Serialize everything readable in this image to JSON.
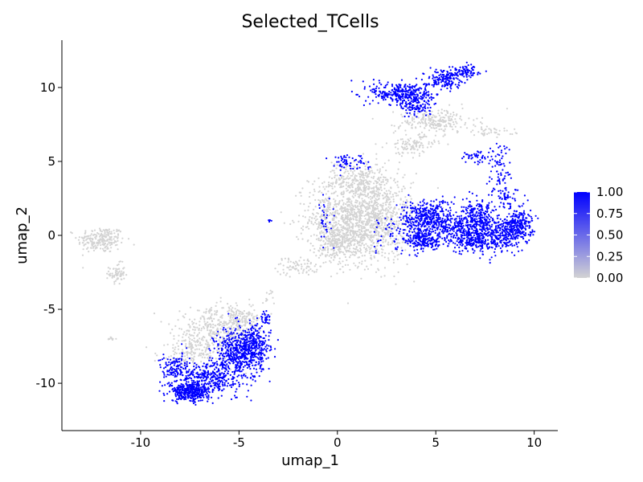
{
  "chart_data": {
    "type": "scatter",
    "title": "Selected_TCells",
    "xlabel": "umap_1",
    "ylabel": "umap_2",
    "xlim": [
      -14,
      11.2
    ],
    "ylim": [
      -13.2,
      13.2
    ],
    "x_ticks": [
      -10,
      -5,
      0,
      5,
      10
    ],
    "x_tick_labels": [
      "-10",
      "-5",
      "0",
      "5",
      "10"
    ],
    "y_ticks": [
      -10,
      -5,
      0,
      5,
      10
    ],
    "y_tick_labels": [
      "-10",
      "-5",
      "0",
      "5",
      "10"
    ],
    "grid": false,
    "legend": {
      "position": "right",
      "type": "colorbar",
      "min": 0.0,
      "max": 1.0,
      "ticks": [
        1.0,
        0.75,
        0.5,
        0.25,
        0.0
      ],
      "tick_labels": [
        "1.00",
        "0.75",
        "0.50",
        "0.25",
        "0.00"
      ],
      "low_color": "#d3d3d3",
      "high_color": "#0000ff"
    },
    "colors": {
      "low": "#d3d3d3",
      "high": "#0000ff"
    },
    "clusters": [
      {
        "cx": -12.0,
        "cy": -0.3,
        "sx": 0.6,
        "sy": 0.45,
        "n": 220,
        "value": 0
      },
      {
        "cx": -11.2,
        "cy": -2.6,
        "sx": 0.2,
        "sy": 0.35,
        "n": 70,
        "value": 0
      },
      {
        "cx": -11.5,
        "cy": -7.0,
        "sx": 0.12,
        "sy": 0.06,
        "n": 10,
        "value": 0
      },
      {
        "cx": -2.0,
        "cy": -2.1,
        "sx": 0.55,
        "sy": 0.3,
        "n": 70,
        "value": 0
      },
      {
        "cx": -3.5,
        "cy": -4.3,
        "sx": 0.15,
        "sy": 0.35,
        "n": 15,
        "value": 0
      },
      {
        "cx": 1.2,
        "cy": 1.2,
        "sx": 1.3,
        "sy": 1.5,
        "n": 1500,
        "value": 0
      },
      {
        "cx": 0.0,
        "cy": -0.5,
        "sx": 0.5,
        "sy": 0.5,
        "n": 200,
        "value": 0
      },
      {
        "cx": 1.2,
        "cy": 3.8,
        "sx": 0.8,
        "sy": 0.5,
        "n": 150,
        "value": 0
      },
      {
        "cx": 5.0,
        "cy": 7.7,
        "sx": 1.0,
        "sy": 0.4,
        "n": 220,
        "value": 0
      },
      {
        "cx": 3.8,
        "cy": 6.1,
        "sx": 0.6,
        "sy": 0.35,
        "n": 110,
        "value": 0
      },
      {
        "cx": 7.8,
        "cy": 7.0,
        "sx": 0.6,
        "sy": 0.15,
        "n": 40,
        "value": 0
      },
      {
        "cx": -7.5,
        "cy": -8.0,
        "sx": 0.8,
        "sy": 0.55,
        "n": 120,
        "value": 0
      },
      {
        "cx": -6.3,
        "cy": -6.6,
        "sx": 1.0,
        "sy": 0.8,
        "n": 350,
        "value": 0
      },
      {
        "cx": -5.0,
        "cy": -5.7,
        "sx": 0.6,
        "sy": 0.4,
        "n": 150,
        "value": 0
      },
      {
        "cx": -5.0,
        "cy": -8.0,
        "sx": 0.6,
        "sy": 0.9,
        "n": 500,
        "value": 1
      },
      {
        "cx": -4.2,
        "cy": -7.4,
        "sx": 0.4,
        "sy": 0.6,
        "n": 200,
        "value": 1
      },
      {
        "cx": -7.5,
        "cy": -10.6,
        "sx": 0.5,
        "sy": 0.3,
        "n": 350,
        "value": 1
      },
      {
        "cx": -6.5,
        "cy": -9.6,
        "sx": 0.7,
        "sy": 0.5,
        "n": 300,
        "value": 1
      },
      {
        "cx": -8.2,
        "cy": -9.0,
        "sx": 0.4,
        "sy": 0.5,
        "n": 130,
        "value": 1
      },
      {
        "cx": -3.7,
        "cy": -5.6,
        "sx": 0.12,
        "sy": 0.2,
        "n": 30,
        "value": 1
      },
      {
        "cx": 3.3,
        "cy": 9.6,
        "sx": 0.8,
        "sy": 0.4,
        "n": 300,
        "value": 1
      },
      {
        "cx": 4.0,
        "cy": 8.8,
        "sx": 0.4,
        "sy": 0.4,
        "n": 120,
        "value": 1
      },
      {
        "cx": 5.4,
        "cy": 10.6,
        "sx": 0.5,
        "sy": 0.3,
        "n": 150,
        "value": 1
      },
      {
        "cx": 6.5,
        "cy": 11.1,
        "sx": 0.4,
        "sy": 0.2,
        "n": 80,
        "value": 1
      },
      {
        "cx": 0.5,
        "cy": 5.0,
        "sx": 0.5,
        "sy": 0.3,
        "n": 60,
        "value": 1
      },
      {
        "cx": 7.0,
        "cy": 5.3,
        "sx": 0.4,
        "sy": 0.25,
        "n": 40,
        "value": 1
      },
      {
        "cx": 8.2,
        "cy": 4.5,
        "sx": 0.3,
        "sy": 1.0,
        "n": 80,
        "value": 1
      },
      {
        "cx": 8.6,
        "cy": 2.6,
        "sx": 0.3,
        "sy": 0.3,
        "n": 40,
        "value": 1
      },
      {
        "cx": 4.5,
        "cy": 1.2,
        "sx": 0.6,
        "sy": 0.6,
        "n": 350,
        "value": 1
      },
      {
        "cx": 4.4,
        "cy": -0.3,
        "sx": 0.5,
        "sy": 0.4,
        "n": 200,
        "value": 1
      },
      {
        "cx": 6.3,
        "cy": 0.5,
        "sx": 0.8,
        "sy": 0.55,
        "n": 300,
        "value": 1
      },
      {
        "cx": 7.2,
        "cy": 1.2,
        "sx": 0.4,
        "sy": 0.55,
        "n": 200,
        "value": 1
      },
      {
        "cx": 8.2,
        "cy": 0.0,
        "sx": 0.5,
        "sy": 0.6,
        "n": 250,
        "value": 1
      },
      {
        "cx": 9.2,
        "cy": 0.8,
        "sx": 0.35,
        "sy": 0.6,
        "n": 250,
        "value": 1
      },
      {
        "cx": 6.8,
        "cy": -0.4,
        "sx": 0.5,
        "sy": 0.4,
        "n": 150,
        "value": 1
      },
      {
        "cx": 2.8,
        "cy": 0.2,
        "sx": 0.8,
        "sy": 0.8,
        "n": 50,
        "value": 1
      },
      {
        "cx": -0.6,
        "cy": 1.0,
        "sx": 0.2,
        "sy": 0.8,
        "n": 30,
        "value": 1
      },
      {
        "cx": -3.4,
        "cy": 1.0,
        "sx": 0.05,
        "sy": 0.05,
        "n": 6,
        "value": 1
      }
    ]
  }
}
